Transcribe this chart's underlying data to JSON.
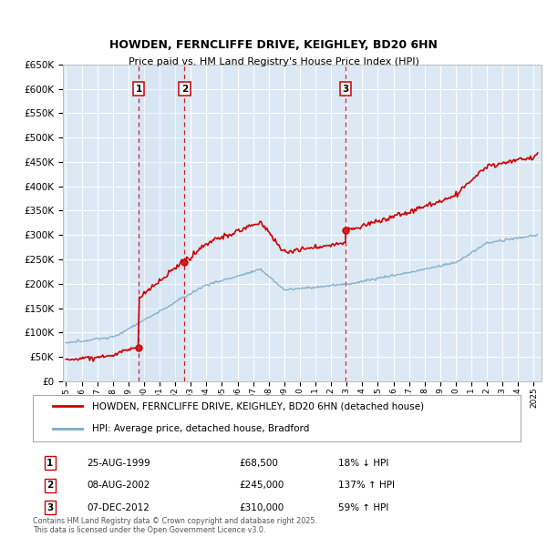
{
  "title": "HOWDEN, FERNCLIFFE DRIVE, KEIGHLEY, BD20 6HN",
  "subtitle": "Price paid vs. HM Land Registry's House Price Index (HPI)",
  "footnote": "Contains HM Land Registry data © Crown copyright and database right 2025.\nThis data is licensed under the Open Government Licence v3.0.",
  "legend_line1": "HOWDEN, FERNCLIFFE DRIVE, KEIGHLEY, BD20 6HN (detached house)",
  "legend_line2": "HPI: Average price, detached house, Bradford",
  "sales": [
    {
      "label": "1",
      "date": "25-AUG-1999",
      "price": 68500,
      "pct": "18%",
      "dir": "↓",
      "year": 1999.65
    },
    {
      "label": "2",
      "date": "08-AUG-2002",
      "price": 245000,
      "pct": "137%",
      "dir": "↑",
      "year": 2002.6
    },
    {
      "label": "3",
      "date": "07-DEC-2012",
      "price": 310000,
      "pct": "59%",
      "dir": "↑",
      "year": 2012.92
    }
  ],
  "red_line_color": "#cc0000",
  "blue_line_color": "#7aaac8",
  "background_color": "#dce9f5",
  "grid_color": "#ffffff",
  "dashed_line_color": "#cc0000",
  "ylim": [
    0,
    650000
  ],
  "yticks": [
    0,
    50000,
    100000,
    150000,
    200000,
    250000,
    300000,
    350000,
    400000,
    450000,
    500000,
    550000,
    600000,
    650000
  ],
  "xlim": [
    1994.8,
    2025.5
  ],
  "xticks": [
    1995,
    1996,
    1997,
    1998,
    1999,
    2000,
    2001,
    2002,
    2003,
    2004,
    2005,
    2006,
    2007,
    2008,
    2009,
    2010,
    2011,
    2012,
    2013,
    2014,
    2015,
    2016,
    2017,
    2018,
    2019,
    2020,
    2021,
    2022,
    2023,
    2024,
    2025
  ]
}
